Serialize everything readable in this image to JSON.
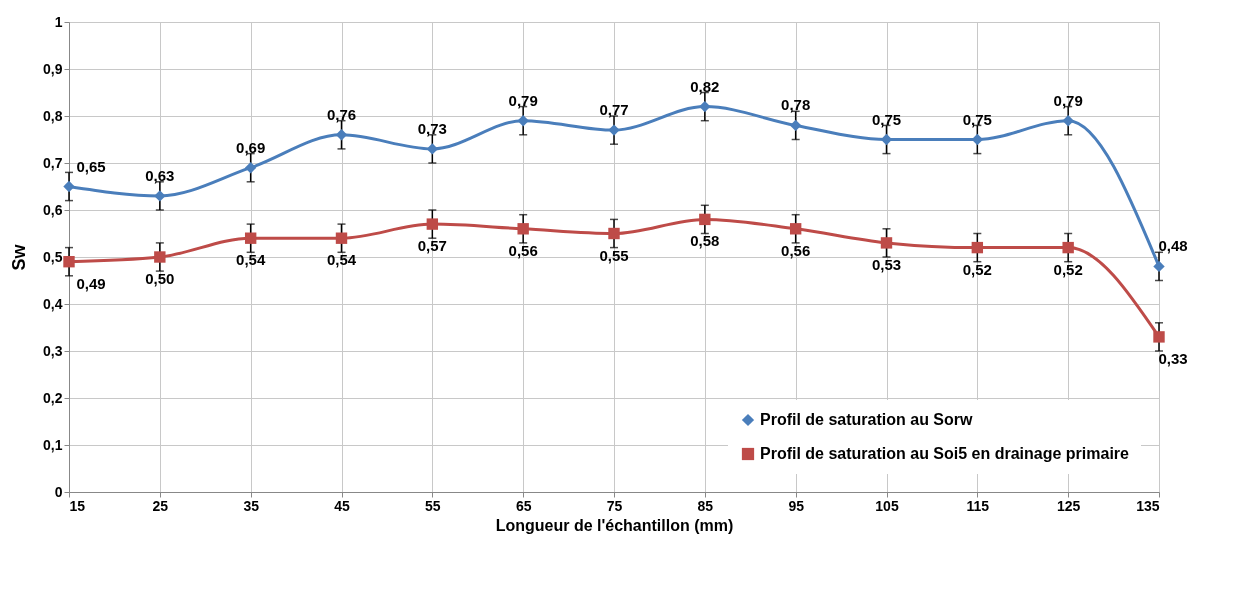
{
  "chart_data": {
    "type": "line",
    "xlabel": "Longueur de l'échantillon (mm)",
    "ylabel": "Sw",
    "x": [
      15,
      25,
      35,
      45,
      55,
      65,
      75,
      85,
      95,
      105,
      115,
      125,
      135
    ],
    "xlim": [
      15,
      135
    ],
    "xticks": [
      15,
      25,
      35,
      45,
      55,
      65,
      75,
      85,
      95,
      105,
      115,
      125,
      135
    ],
    "ylim": [
      0,
      1
    ],
    "yticks": [
      0,
      {
        "value": 0.1,
        "label": "0,1"
      },
      {
        "value": 0.2,
        "label": "0,2"
      },
      {
        "value": 0.3,
        "label": "0,3"
      },
      {
        "value": 0.4,
        "label": "0,4"
      },
      {
        "value": 0.5,
        "label": "0,5"
      },
      {
        "value": 0.6,
        "label": "0,6"
      },
      {
        "value": 0.7,
        "label": "0,7"
      },
      {
        "value": 0.8,
        "label": "0,8"
      },
      {
        "value": 0.9,
        "label": "0,9"
      },
      1
    ],
    "grid": true,
    "legend": "bottom right",
    "line_style": "solid",
    "series": [
      {
        "name": "Profil de saturation au Sorw",
        "color": "#4a7ebb",
        "marker": "diamond",
        "values": [
          0.65,
          0.63,
          0.69,
          0.76,
          0.73,
          0.79,
          0.77,
          0.82,
          0.78,
          0.75,
          0.75,
          0.79,
          0.48
        ],
        "errors": [
          0.03,
          0.03,
          0.03,
          0.03,
          0.03,
          0.03,
          0.03,
          0.03,
          0.03,
          0.03,
          0.03,
          0.03,
          0.03
        ],
        "value_labels": [
          "0,65",
          "0,63",
          "0,69",
          "0,76",
          "0,73",
          "0,79",
          "0,77",
          "0,82",
          "0,78",
          "0,75",
          "0,75",
          "0,79",
          "0,48"
        ]
      },
      {
        "name": "Profil de saturation au Soi5 en drainage primaire",
        "color": "#be4b48",
        "marker": "square",
        "values": [
          0.49,
          0.5,
          0.54,
          0.54,
          0.57,
          0.56,
          0.55,
          0.58,
          0.56,
          0.53,
          0.52,
          0.52,
          0.33
        ],
        "errors": [
          0.03,
          0.03,
          0.03,
          0.03,
          0.03,
          0.03,
          0.03,
          0.03,
          0.03,
          0.03,
          0.03,
          0.03,
          0.03
        ],
        "value_labels": [
          "0,49",
          "0,50",
          "0,54",
          "0,54",
          "0,57",
          "0,56",
          "0,55",
          "0,58",
          "0,56",
          "0,53",
          "0,52",
          "0,52",
          "0,33"
        ]
      }
    ]
  }
}
